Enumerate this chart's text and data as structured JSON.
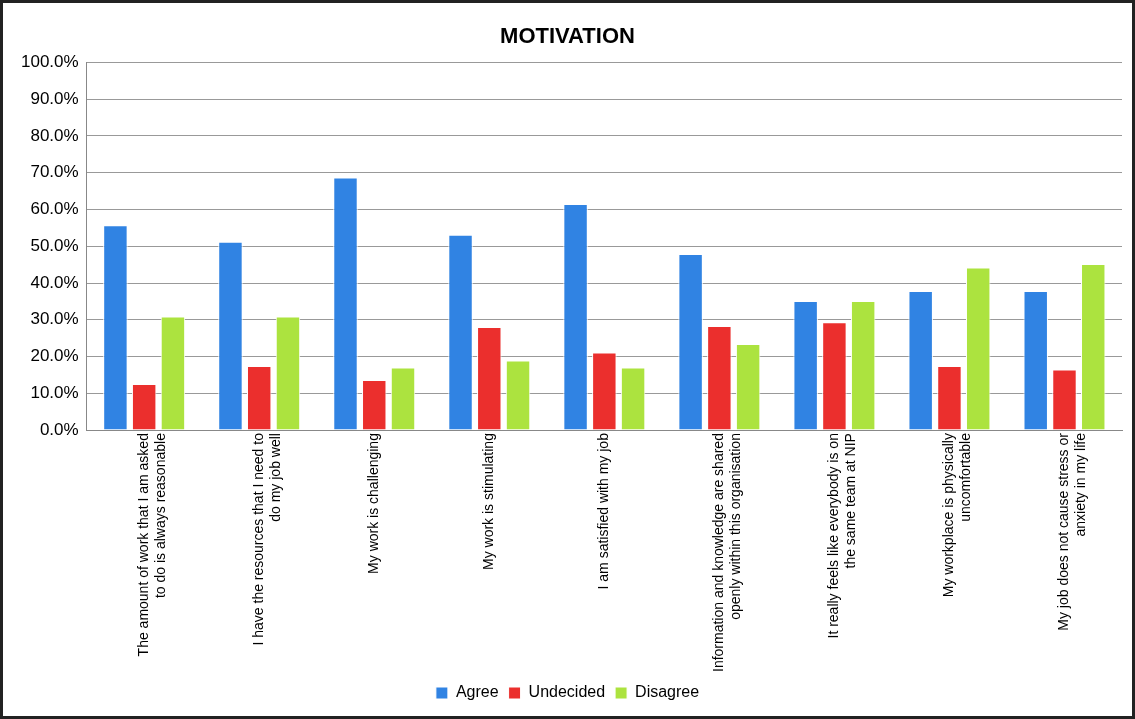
{
  "chart_data": {
    "type": "bar",
    "title": "MOTIVATION",
    "categories": [
      "The amount of work that I am asked to do is always reasonable",
      "I have the resources that I need to do my job well",
      "My work is challenging",
      "My work is stimulating",
      "I am satisfied with my job",
      "Information and knowledge are shared openly within this organisation",
      "It really feels like everybody is on the same team at NIP",
      "My workplace is physically uncomfortable",
      "My job does not cause stress or anxiety in my life"
    ],
    "series": [
      {
        "name": "Agree",
        "color": "#3083e3",
        "values": [
          55.7,
          51.2,
          68.7,
          53.1,
          61.5,
          47.9,
          35.1,
          37.8,
          37.8
        ]
      },
      {
        "name": "Undecided",
        "color": "#eb2f2d",
        "values": [
          12.5,
          17.4,
          13.6,
          28.0,
          21.1,
          28.3,
          29.3,
          17.4,
          16.5
        ]
      },
      {
        "name": "Disagree",
        "color": "#ace33f",
        "values": [
          30.9,
          30.9,
          17.0,
          18.9,
          17.0,
          23.4,
          35.1,
          44.2,
          45.2
        ]
      }
    ],
    "ylim": [
      0,
      100
    ],
    "yticks": [
      {
        "value": 0,
        "label": "0.0%"
      },
      {
        "value": 10,
        "label": "10.0%"
      },
      {
        "value": 20,
        "label": "20.0%"
      },
      {
        "value": 30,
        "label": "30.0%"
      },
      {
        "value": 40,
        "label": "40.0%"
      },
      {
        "value": 50,
        "label": "50.0%"
      },
      {
        "value": 60,
        "label": "60.0%"
      },
      {
        "value": 70,
        "label": "70.0%"
      },
      {
        "value": 80,
        "label": "80.0%"
      },
      {
        "value": 90,
        "label": "90.0%"
      },
      {
        "value": 100,
        "label": "100.0%"
      }
    ],
    "grid": "y",
    "legend": "bottom"
  }
}
